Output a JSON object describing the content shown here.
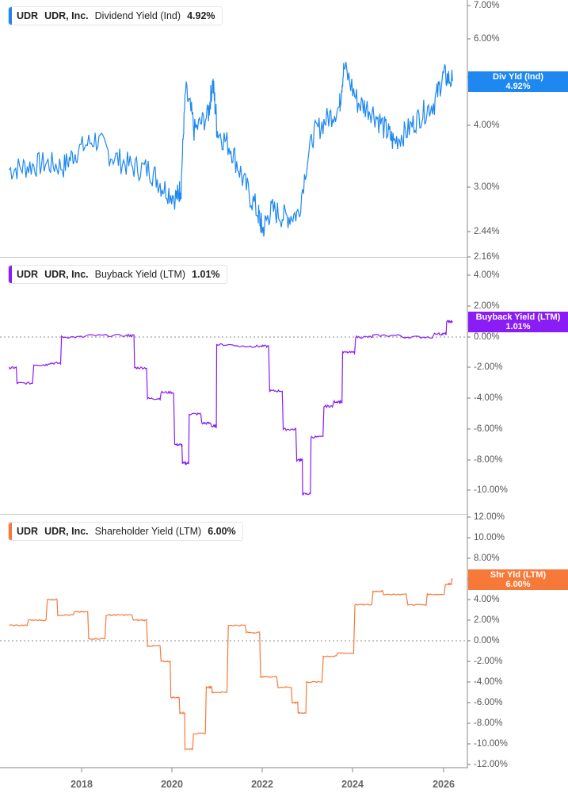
{
  "colors": {
    "dividend": "#1e88f0",
    "buyback": "#8a1cf5",
    "shareholder": "#f7793a",
    "axis": "#b0b0b0",
    "tick_text": "#555555"
  },
  "panels": [
    {
      "legend": {
        "ticker": "UDR",
        "company": "UDR, Inc.",
        "metric": "Dividend Yield (Ind)",
        "value": "4.92%"
      },
      "badge": {
        "label": "Div Yld (Ind)",
        "value": "4.92%"
      },
      "ticks": [
        "7.00%",
        "6.00%",
        "5.00%",
        "4.00%",
        "3.00%",
        "2.44%",
        "2.16%"
      ]
    },
    {
      "legend": {
        "ticker": "UDR",
        "company": "UDR, Inc.",
        "metric": "Buyback Yield (LTM)",
        "value": "1.01%"
      },
      "badge": {
        "label": "Buyback Yield (LTM)",
        "value": "1.01%"
      },
      "ticks": [
        "4.00%",
        "2.00%",
        "0.00%",
        "-2.00%",
        "-4.00%",
        "-6.00%",
        "-8.00%",
        "-10.00%"
      ]
    },
    {
      "legend": {
        "ticker": "UDR",
        "company": "UDR, Inc.",
        "metric": "Shareholder Yield (LTM)",
        "value": "6.00%"
      },
      "badge": {
        "label": "Shr Yld (LTM)",
        "value": "6.00%"
      },
      "ticks": [
        "12.00%",
        "10.00%",
        "8.00%",
        "6.00%",
        "4.00%",
        "2.00%",
        "0.00%",
        "-2.00%",
        "-4.00%",
        "-6.00%",
        "-8.00%",
        "-10.00%",
        "-12.00%"
      ]
    }
  ],
  "x_axis": {
    "labels": [
      "2018",
      "2020",
      "2022",
      "2024",
      "2026"
    ]
  },
  "chart_data": [
    {
      "type": "line",
      "title": "UDR, Inc. Dividend Yield (Ind)",
      "xlabel": "",
      "ylabel": "",
      "yscale": "log",
      "ylim": [
        2.16,
        7.0
      ],
      "yticks": [
        2.16,
        2.44,
        3.0,
        4.0,
        5.0,
        6.0,
        7.0
      ],
      "x": [
        2016.4,
        2016.8,
        2017.2,
        2017.6,
        2017.9,
        2018.3,
        2018.7,
        2019.1,
        2019.5,
        2019.8,
        2020.1,
        2020.2,
        2020.3,
        2020.5,
        2020.8,
        2020.9,
        2021.0,
        2021.3,
        2021.6,
        2021.9,
        2022.0,
        2022.2,
        2022.5,
        2022.8,
        2023.1,
        2023.4,
        2023.7,
        2023.8,
        2024.1,
        2024.4,
        2024.7,
        2024.9,
        2025.2,
        2025.5,
        2025.8,
        2026.0,
        2026.2
      ],
      "values": [
        3.25,
        3.3,
        3.35,
        3.3,
        3.55,
        3.75,
        3.45,
        3.3,
        3.25,
        3.0,
        2.85,
        3.0,
        4.7,
        3.9,
        4.2,
        4.9,
        3.9,
        3.6,
        3.05,
        2.65,
        2.45,
        2.7,
        2.6,
        2.65,
        3.8,
        4.1,
        4.35,
        5.25,
        4.45,
        4.3,
        3.95,
        3.7,
        3.9,
        4.2,
        4.45,
        5.05,
        4.92
      ],
      "last_value": 4.92,
      "legend": [
        "UDR, Inc. Dividend Yield (Ind)"
      ]
    },
    {
      "type": "line",
      "title": "UDR, Inc. Buyback Yield (LTM)",
      "xlabel": "",
      "ylabel": "",
      "ylim": [
        -11.0,
        4.0
      ],
      "yticks": [
        -10,
        -8,
        -6,
        -4,
        -2,
        0,
        2,
        4
      ],
      "reference_line": 0,
      "x": [
        2016.4,
        2016.6,
        2017.0,
        2017.3,
        2017.6,
        2018.2,
        2019.0,
        2019.2,
        2019.5,
        2019.8,
        2020.1,
        2020.25,
        2020.4,
        2020.7,
        2020.9,
        2021.0,
        2021.5,
        2021.9,
        2022.2,
        2022.5,
        2022.8,
        2022.9,
        2023.1,
        2023.4,
        2023.6,
        2023.8,
        2024.1,
        2024.5,
        2025.2,
        2025.9,
        2026.1,
        2026.2
      ],
      "values": [
        -2.0,
        -3.0,
        -1.8,
        -1.7,
        0.0,
        0.1,
        0.1,
        -2.0,
        -4.0,
        -3.6,
        -7.0,
        -8.2,
        -5.0,
        -5.6,
        -5.8,
        -0.5,
        -0.6,
        -0.6,
        -3.5,
        -6.0,
        -8.0,
        -10.2,
        -6.5,
        -4.5,
        -4.2,
        -1.0,
        0.0,
        0.1,
        0.0,
        0.2,
        1.0,
        1.01
      ],
      "last_value": 1.01,
      "legend": [
        "UDR, Inc. Buyback Yield (LTM)"
      ]
    },
    {
      "type": "line",
      "title": "UDR, Inc. Shareholder Yield (LTM)",
      "xlabel": "",
      "ylabel": "",
      "ylim": [
        -12.0,
        12.0
      ],
      "yticks": [
        -12,
        -10,
        -8,
        -6,
        -4,
        -2,
        0,
        2,
        4,
        6,
        8,
        10,
        12
      ],
      "reference_line": 0,
      "x": [
        2016.4,
        2016.9,
        2017.3,
        2017.5,
        2017.9,
        2018.2,
        2018.6,
        2018.8,
        2019.2,
        2019.5,
        2019.8,
        2020.0,
        2020.2,
        2020.3,
        2020.5,
        2020.8,
        2020.9,
        2021.3,
        2021.7,
        2022.0,
        2022.4,
        2022.7,
        2022.8,
        2023.0,
        2023.4,
        2023.7,
        2024.1,
        2024.5,
        2024.7,
        2025.3,
        2025.7,
        2026.1,
        2026.2
      ],
      "values": [
        1.5,
        2.0,
        4.0,
        2.5,
        2.8,
        0.2,
        2.5,
        2.5,
        2.0,
        -0.5,
        -2.0,
        -5.5,
        -7.0,
        -10.5,
        -9.0,
        -4.5,
        -5.0,
        1.5,
        0.8,
        -3.5,
        -4.5,
        -6.0,
        -7.0,
        -4.0,
        -1.5,
        -1.2,
        3.5,
        4.8,
        4.5,
        3.5,
        4.5,
        5.5,
        6.0
      ],
      "last_value": 6.0,
      "legend": [
        "UDR, Inc. Shareholder Yield (LTM)"
      ]
    }
  ]
}
